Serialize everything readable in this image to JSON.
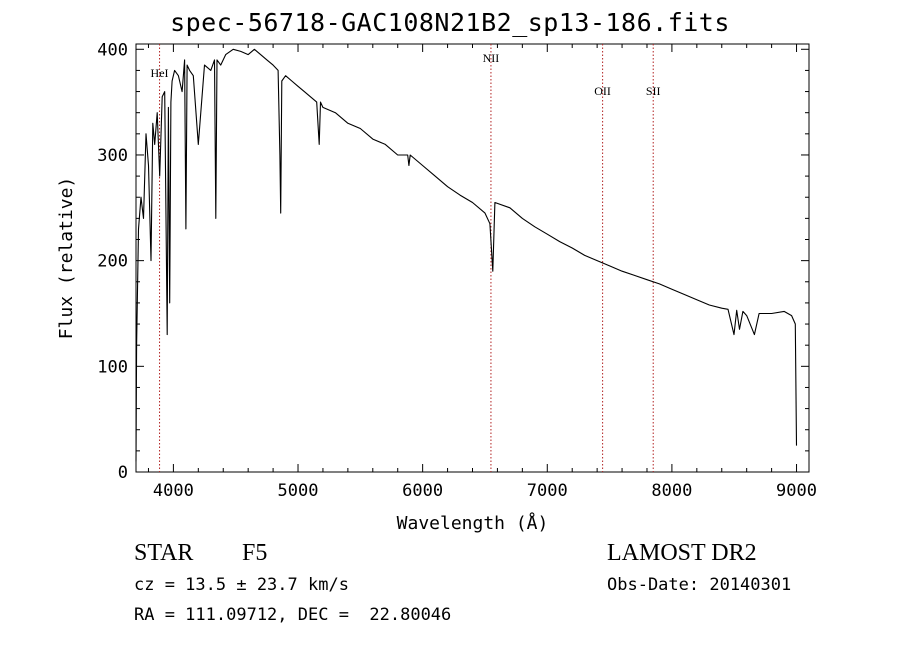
{
  "chart_data": {
    "type": "line",
    "title": "spec-56718-GAC108N21B2_sp13-186.fits",
    "xlabel": "Wavelength (Å)",
    "ylabel": "Flux (relative)",
    "xlim": [
      3700,
      9100
    ],
    "ylim": [
      0,
      405
    ],
    "xticks": [
      4000,
      5000,
      6000,
      7000,
      8000,
      9000
    ],
    "yticks": [
      0,
      100,
      200,
      300,
      400
    ],
    "series": [
      {
        "name": "flux",
        "x": [
          3700,
          3705,
          3720,
          3740,
          3760,
          3780,
          3800,
          3820,
          3835,
          3850,
          3870,
          3890,
          3910,
          3930,
          3950,
          3960,
          3970,
          3980,
          3990,
          4010,
          4040,
          4070,
          4090,
          4100,
          4110,
          4130,
          4160,
          4200,
          4250,
          4300,
          4330,
          4340,
          4350,
          4380,
          4420,
          4480,
          4540,
          4600,
          4650,
          4700,
          4750,
          4800,
          4840,
          4855,
          4861,
          4870,
          4900,
          4950,
          5000,
          5050,
          5100,
          5150,
          5170,
          5180,
          5200,
          5300,
          5400,
          5500,
          5600,
          5700,
          5800,
          5880,
          5890,
          5900,
          6000,
          6100,
          6200,
          6300,
          6400,
          6500,
          6540,
          6563,
          6580,
          6700,
          6800,
          6900,
          7000,
          7100,
          7200,
          7300,
          7400,
          7500,
          7600,
          7700,
          7800,
          7900,
          8000,
          8100,
          8200,
          8300,
          8400,
          8450,
          8498,
          8520,
          8542,
          8570,
          8600,
          8662,
          8700,
          8800,
          8900,
          8960,
          8990,
          9000
        ],
        "y": [
          10,
          120,
          230,
          260,
          240,
          320,
          290,
          200,
          330,
          310,
          340,
          280,
          355,
          360,
          130,
          345,
          160,
          350,
          370,
          380,
          375,
          360,
          390,
          230,
          385,
          380,
          375,
          310,
          385,
          380,
          390,
          240,
          390,
          385,
          395,
          400,
          398,
          395,
          400,
          395,
          390,
          385,
          380,
          300,
          245,
          370,
          375,
          370,
          365,
          360,
          355,
          350,
          310,
          350,
          345,
          340,
          330,
          325,
          315,
          310,
          300,
          300,
          290,
          300,
          290,
          280,
          270,
          262,
          255,
          245,
          235,
          190,
          255,
          250,
          240,
          232,
          225,
          218,
          212,
          205,
          200,
          195,
          190,
          186,
          182,
          178,
          173,
          168,
          163,
          158,
          155,
          154,
          130,
          153,
          135,
          152,
          148,
          130,
          150,
          150,
          152,
          148,
          140,
          25
        ]
      }
    ],
    "vlines": [
      {
        "x": 3889,
        "label": "HeI"
      },
      {
        "x": 6548,
        "label": "NII"
      },
      {
        "x": 7444,
        "label": "OII"
      },
      {
        "x": 7850,
        "label": "SII"
      }
    ]
  },
  "info": {
    "obj_class": "STAR",
    "subclass": "F5",
    "survey": "LAMOST DR2",
    "cz": "cz = 13.5 ± 23.7 km/s",
    "obs_date": "Obs-Date: 20140301",
    "coords": "RA = 111.09712, DEC =  22.80046"
  },
  "colors": {
    "line": "#000000",
    "marker": "#b22222",
    "background": "#ffffff"
  }
}
